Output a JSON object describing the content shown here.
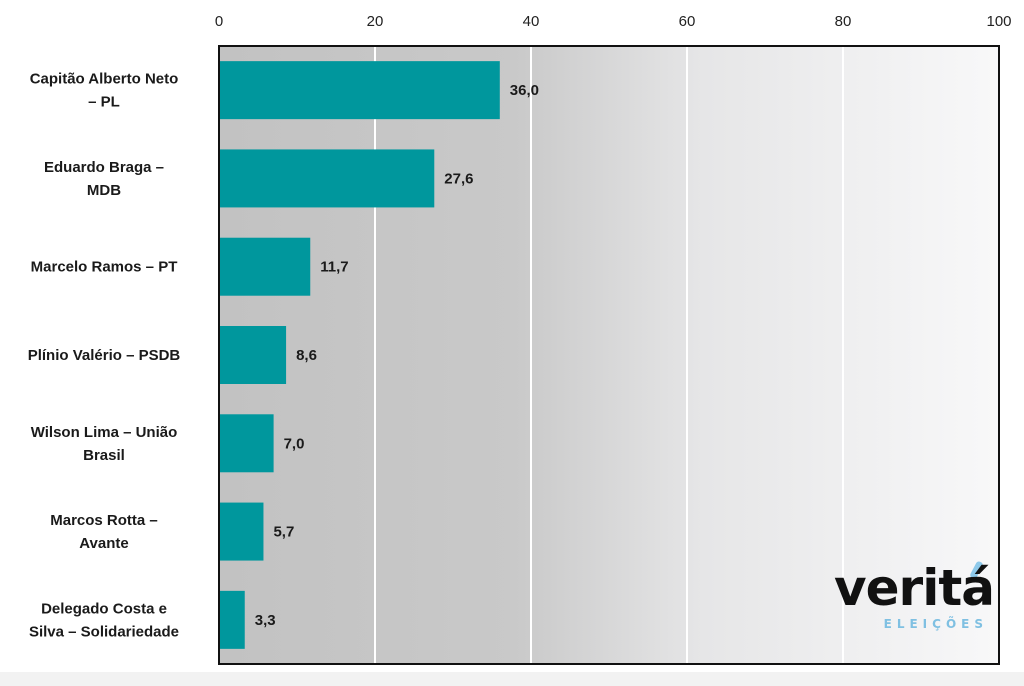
{
  "chart_data": {
    "type": "bar",
    "orientation": "horizontal",
    "categories": [
      [
        "Capitão Alberto Neto",
        "– PL"
      ],
      [
        "Eduardo Braga –",
        "MDB"
      ],
      [
        "Marcelo Ramos – PT"
      ],
      [
        "Plínio Valério – PSDB"
      ],
      [
        "Wilson Lima – União",
        "Brasil"
      ],
      [
        "Marcos Rotta –",
        "Avante"
      ],
      [
        "Delegado Costa e",
        "Silva – Solidariedade"
      ]
    ],
    "values": [
      36.0,
      27.6,
      11.7,
      8.6,
      7.0,
      5.7,
      3.3
    ],
    "value_labels": [
      "36,0",
      "27,6",
      "11,7",
      "8,6",
      "7,0",
      "5,7",
      "3,3"
    ],
    "xlim": [
      0,
      100
    ],
    "x_ticks": [
      0,
      20,
      40,
      60,
      80,
      100
    ],
    "x_axis_position": "top",
    "grid": true,
    "bar_color": "#00979d",
    "background": "gray gradient fading to light on the right"
  },
  "logo": {
    "wordmark": "veritá",
    "subtitle": "ELEIÇÕES",
    "accent_color": "#8ec9ea"
  }
}
